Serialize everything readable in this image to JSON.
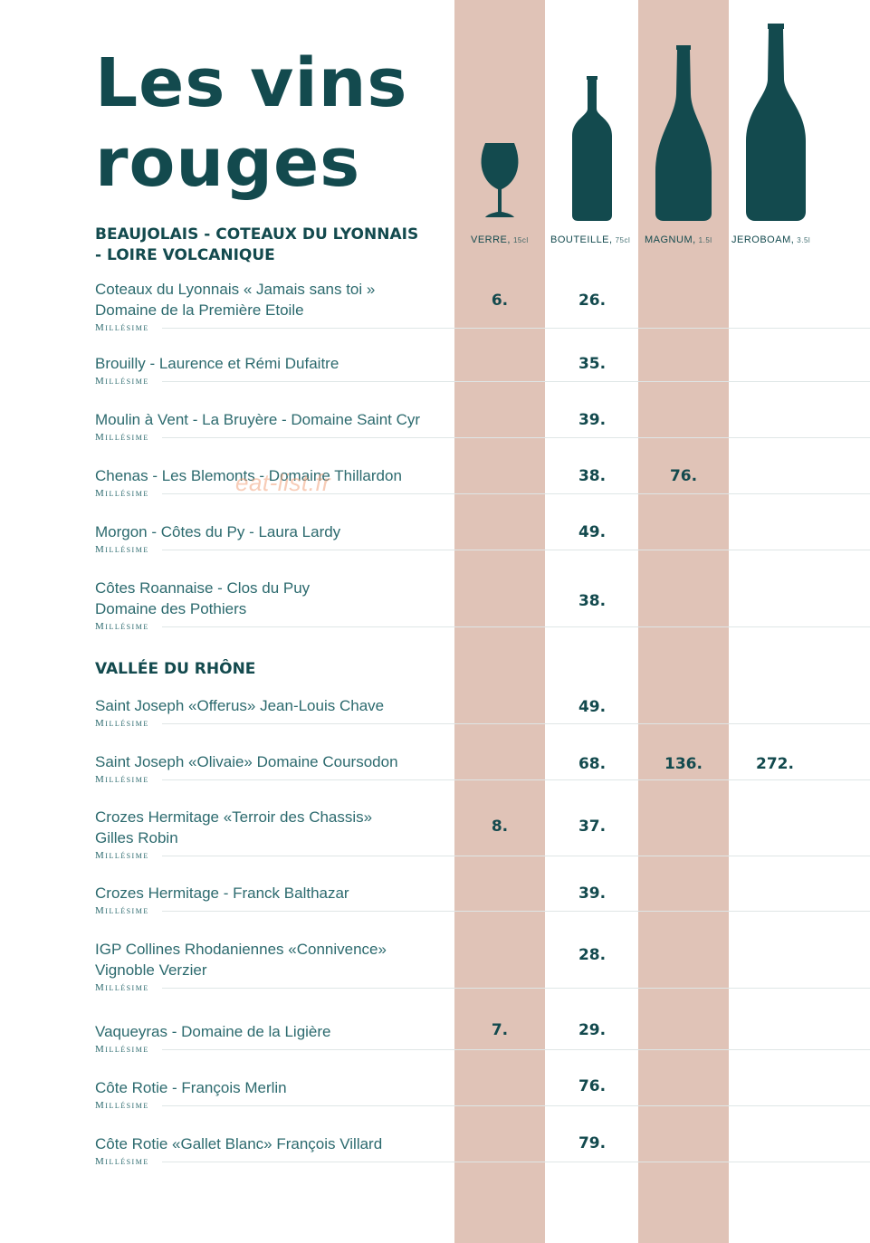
{
  "title": {
    "line1": "Les vins",
    "line2": "rouges"
  },
  "columns": [
    {
      "label": "VERRE,",
      "unit": "15cl",
      "icon": "wine-glass-icon"
    },
    {
      "label": "BOUTEILLE,",
      "unit": "75cl",
      "icon": "bottle-icon"
    },
    {
      "label": "MAGNUM,",
      "unit": "1.5l",
      "icon": "magnum-bottle-icon"
    },
    {
      "label": "JEROBOAM,",
      "unit": "3.5l",
      "icon": "jeroboam-bottle-icon"
    }
  ],
  "colors": {
    "teal": "#134a4e",
    "band": "#e0c3b7",
    "text": "#2c6a6e"
  },
  "sections": [
    {
      "title_line1": "BEAUJOLAIS - COTEAUX DU LYONNAIS",
      "title_line2": "- LOIRE VOLCANIQUE",
      "wines": [
        {
          "line1": "Coteaux du Lyonnais « Jamais sans toi »",
          "line2": "Domaine de la Première Etoile",
          "millesime": "Millésime",
          "verre": "6.",
          "bouteille": "26.",
          "magnum": "",
          "jeroboam": ""
        },
        {
          "line1": "Brouilly - Laurence et Rémi Dufaitre",
          "line2": "",
          "millesime": "Millésime",
          "verre": "",
          "bouteille": "35.",
          "magnum": "",
          "jeroboam": ""
        },
        {
          "line1": "Moulin à Vent - La Bruyère - Domaine Saint Cyr",
          "line2": "",
          "millesime": "Millésime",
          "verre": "",
          "bouteille": "39.",
          "magnum": "",
          "jeroboam": ""
        },
        {
          "line1": "Chenas - Les Blemonts - Domaine Thillardon",
          "line2": "",
          "millesime": "Millésime",
          "verre": "",
          "bouteille": "38.",
          "magnum": "76.",
          "jeroboam": ""
        },
        {
          "line1": "Morgon - Côtes du Py - Laura Lardy",
          "line2": "",
          "millesime": "Millésime",
          "verre": "",
          "bouteille": "49.",
          "magnum": "",
          "jeroboam": ""
        },
        {
          "line1": "Côtes Roannaise -  Clos du Puy",
          "line2": "Domaine des Pothiers",
          "millesime": "Millésime",
          "verre": "",
          "bouteille": "38.",
          "magnum": "",
          "jeroboam": ""
        }
      ]
    },
    {
      "title_line1": "VALLÉE DU RHÔNE",
      "title_line2": "",
      "wines": [
        {
          "line1": "Saint Joseph «Offerus» Jean-Louis Chave",
          "line2": "",
          "millesime": "Millésime",
          "verre": "",
          "bouteille": "49.",
          "magnum": "",
          "jeroboam": ""
        },
        {
          "line1": "Saint Joseph «Olivaie» Domaine Coursodon",
          "line2": "",
          "millesime": "Millésime",
          "verre": "",
          "bouteille": "68.",
          "magnum": "136.",
          "jeroboam": "272."
        },
        {
          "line1": "Crozes Hermitage «Terroir des Chassis»",
          "line2": "Gilles Robin",
          "millesime": "Millésime",
          "verre": "8.",
          "bouteille": "37.",
          "magnum": "",
          "jeroboam": ""
        },
        {
          "line1": "Crozes Hermitage - Franck Balthazar",
          "line2": "",
          "millesime": "Millésime",
          "verre": "",
          "bouteille": "39.",
          "magnum": "",
          "jeroboam": ""
        },
        {
          "line1": "IGP Collines Rhodaniennes «Connivence»",
          "line2": "Vignoble Verzier",
          "millesime": "Millésime",
          "verre": "",
          "bouteille": "28.",
          "magnum": "",
          "jeroboam": ""
        },
        {
          "line1": "Vaqueyras - Domaine de la Ligière",
          "line2": "",
          "millesime": "Millésime",
          "verre": "7.",
          "bouteille": "29.",
          "magnum": "",
          "jeroboam": ""
        },
        {
          "line1": "Côte Rotie - François Merlin",
          "line2": "",
          "millesime": "Millésime",
          "verre": "",
          "bouteille": "76.",
          "magnum": "",
          "jeroboam": ""
        },
        {
          "line1": "Côte Rotie «Gallet Blanc» François Villard",
          "line2": "",
          "millesime": "Millésime",
          "verre": "",
          "bouteille": "79.",
          "magnum": "",
          "jeroboam": ""
        }
      ]
    }
  ],
  "watermark": "eat-list.fr"
}
